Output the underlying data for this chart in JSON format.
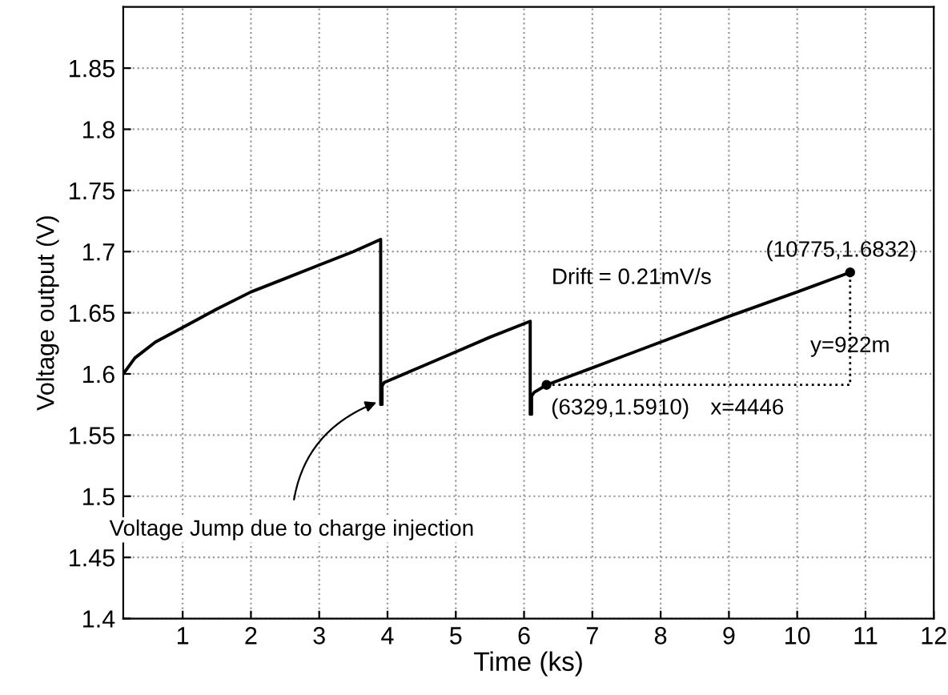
{
  "chart_data": {
    "type": "line",
    "xlabel": "Time (ks)",
    "ylabel": "Voltage output (V)",
    "xlim": [
      0.13,
      12
    ],
    "xticks": [
      1,
      2,
      3,
      4,
      5,
      6,
      7,
      8,
      9,
      10,
      11,
      12
    ],
    "ylim": [
      1.4,
      1.9
    ],
    "yticks": [
      1.4,
      1.45,
      1.5,
      1.55,
      1.6,
      1.65,
      1.7,
      1.75,
      1.8,
      1.85
    ],
    "grid": true,
    "legend": false,
    "series": [
      {
        "color": "#000000",
        "line_style": "solid",
        "marker": "none",
        "x": [
          0.13,
          0.3,
          0.6,
          1.0,
          1.5,
          2.0,
          2.5,
          3.0,
          3.5,
          3.9,
          3.9,
          3.92,
          3.92,
          3.95,
          4.5,
          5.0,
          5.5,
          6.09,
          6.09,
          6.11,
          6.11,
          6.15,
          6.329,
          7.0,
          8.0,
          9.0,
          10.0,
          10.775
        ],
        "values": [
          1.6,
          1.613,
          1.626,
          1.638,
          1.653,
          1.667,
          1.678,
          1.689,
          1.7,
          1.71,
          1.575,
          1.575,
          1.59,
          1.593,
          1.606,
          1.618,
          1.63,
          1.643,
          1.567,
          1.567,
          1.582,
          1.585,
          1.591,
          1.605,
          1.626,
          1.647,
          1.667,
          1.683
        ]
      },
      {
        "type": "line",
        "color": "#000000",
        "line_style": "dotted",
        "marker": "none",
        "x": [
          6.329,
          10.775,
          10.775
        ],
        "values": [
          1.591,
          1.591,
          1.683
        ]
      },
      {
        "type": "scatter",
        "color": "#000000",
        "marker": "circle",
        "x": [
          6.329,
          10.775
        ],
        "values": [
          1.591,
          1.683
        ]
      }
    ],
    "annotations": [
      {
        "text": "(10775,1.6832)",
        "x": 10.775,
        "y": 1.683
      },
      {
        "text": "(6329,1.5910)",
        "x": 6.329,
        "y": 1.591
      },
      "Drift = 0.21mV/s",
      "x=4446",
      "y=922m",
      {
        "text": "Voltage Jump due to charge injection",
        "x": 3.9,
        "y": 1.578
      }
    ]
  }
}
